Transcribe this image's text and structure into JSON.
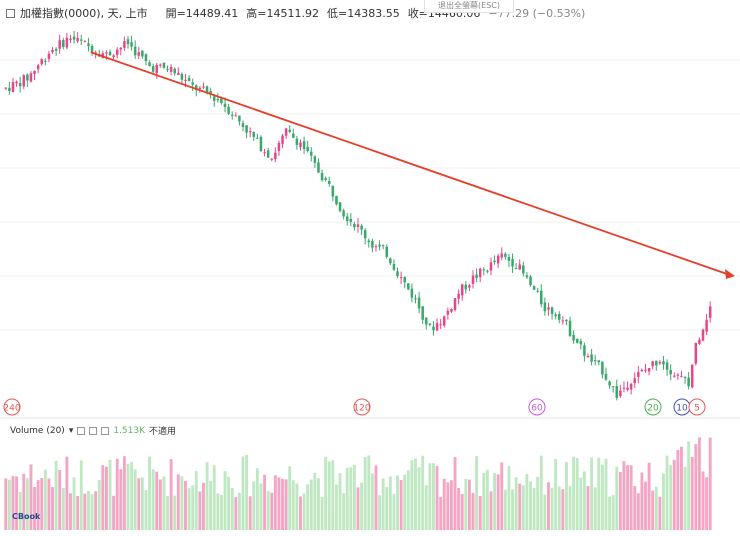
{
  "header": {
    "title": "加權指數(0000), 天, 上市",
    "open": "開=14489.41",
    "high": "高=14511.92",
    "low": "低=14383.55",
    "close": "收=14460.06",
    "change": "−77.29 (−0.53%)"
  },
  "esc_hint": "退出全螢幕(ESC)",
  "volume_header": {
    "label": "Volume (20)",
    "value": "1.513K",
    "na": "不適用"
  },
  "ma_markers": [
    {
      "label": "240",
      "color": "#e05a5a"
    },
    {
      "label": "120",
      "color": "#e05a5a"
    },
    {
      "label": "60",
      "color": "#c85ad6"
    },
    {
      "label": "20",
      "color": "#4caf50"
    },
    {
      "label": "10",
      "color": "#3f51b5"
    },
    {
      "label": "5",
      "color": "#e05a5a"
    }
  ],
  "colors": {
    "up": "#e8468b",
    "down": "#3aa86b",
    "vol_up": "#f4a5c3",
    "vol_down": "#bfe8c2",
    "trend": "#e53f2a"
  },
  "chart_data": {
    "type": "candlestick",
    "title": "加權指數(0000), 天, 上市",
    "series_note": "daily candles; relative price path shown in index points; volume shown in pane below",
    "price_path": [
      [
        0,
        14550
      ],
      [
        6,
        14620
      ],
      [
        12,
        14800
      ],
      [
        18,
        14900
      ],
      [
        22,
        14850
      ],
      [
        28,
        14780
      ],
      [
        34,
        14860
      ],
      [
        40,
        14700
      ],
      [
        46,
        14680
      ],
      [
        52,
        14560
      ],
      [
        56,
        14520
      ],
      [
        60,
        14460
      ],
      [
        66,
        14300
      ],
      [
        70,
        14180
      ],
      [
        74,
        14080
      ],
      [
        78,
        14250
      ],
      [
        82,
        14180
      ],
      [
        86,
        14020
      ],
      [
        90,
        13880
      ],
      [
        94,
        13700
      ],
      [
        98,
        13600
      ],
      [
        102,
        13480
      ],
      [
        106,
        13420
      ],
      [
        110,
        13250
      ],
      [
        114,
        13100
      ],
      [
        118,
        12900
      ],
      [
        122,
        12980
      ],
      [
        126,
        13150
      ],
      [
        130,
        13250
      ],
      [
        134,
        13320
      ],
      [
        138,
        13400
      ],
      [
        142,
        13350
      ],
      [
        146,
        13200
      ],
      [
        150,
        13050
      ],
      [
        154,
        13000
      ],
      [
        158,
        12850
      ],
      [
        162,
        12700
      ],
      [
        166,
        12620
      ],
      [
        170,
        12450
      ],
      [
        174,
        12560
      ],
      [
        178,
        12620
      ],
      [
        182,
        12700
      ],
      [
        186,
        12600
      ],
      [
        190,
        12520
      ],
      [
        192,
        12800
      ],
      [
        196,
        13050
      ]
    ],
    "trendline": [
      [
        0,
        14880
      ],
      [
        196,
        12860
      ]
    ],
    "volume_series": "Volume (20)",
    "volume_value": "1.513K"
  }
}
